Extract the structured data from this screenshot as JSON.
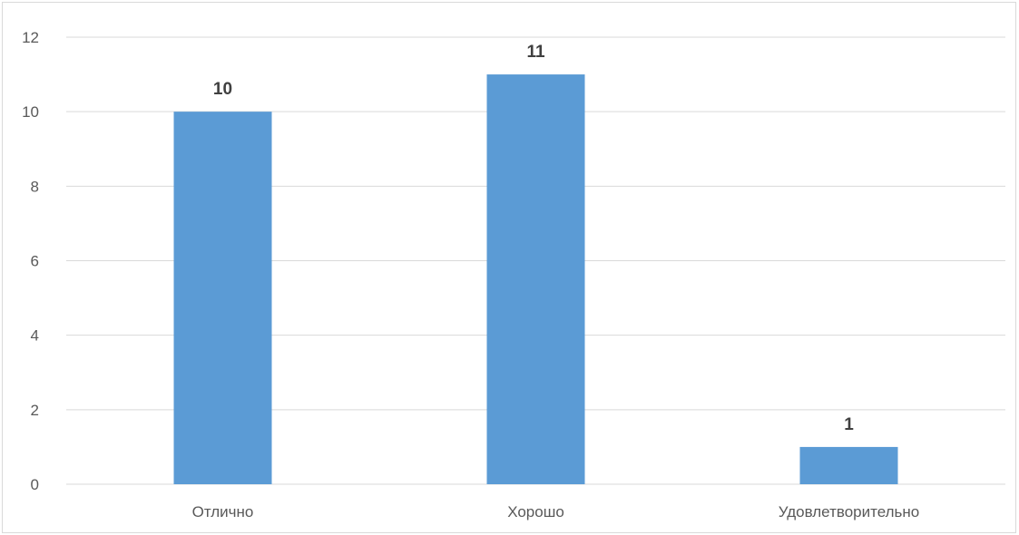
{
  "chart_data": {
    "type": "bar",
    "categories": [
      "Отлично",
      "Хорошо",
      "Удовлетворительно"
    ],
    "values": [
      10,
      11,
      1
    ],
    "data_labels": [
      "10",
      "11",
      "1"
    ],
    "y_ticks": [
      "0",
      "2",
      "4",
      "6",
      "8",
      "10",
      "12"
    ],
    "ylim": [
      0,
      12
    ],
    "grid": true,
    "legend": "none",
    "bar_color": "#5b9bd5",
    "grid_color": "#d9d9d9",
    "axis_text_color": "#595959",
    "label_text_color": "#404040"
  }
}
